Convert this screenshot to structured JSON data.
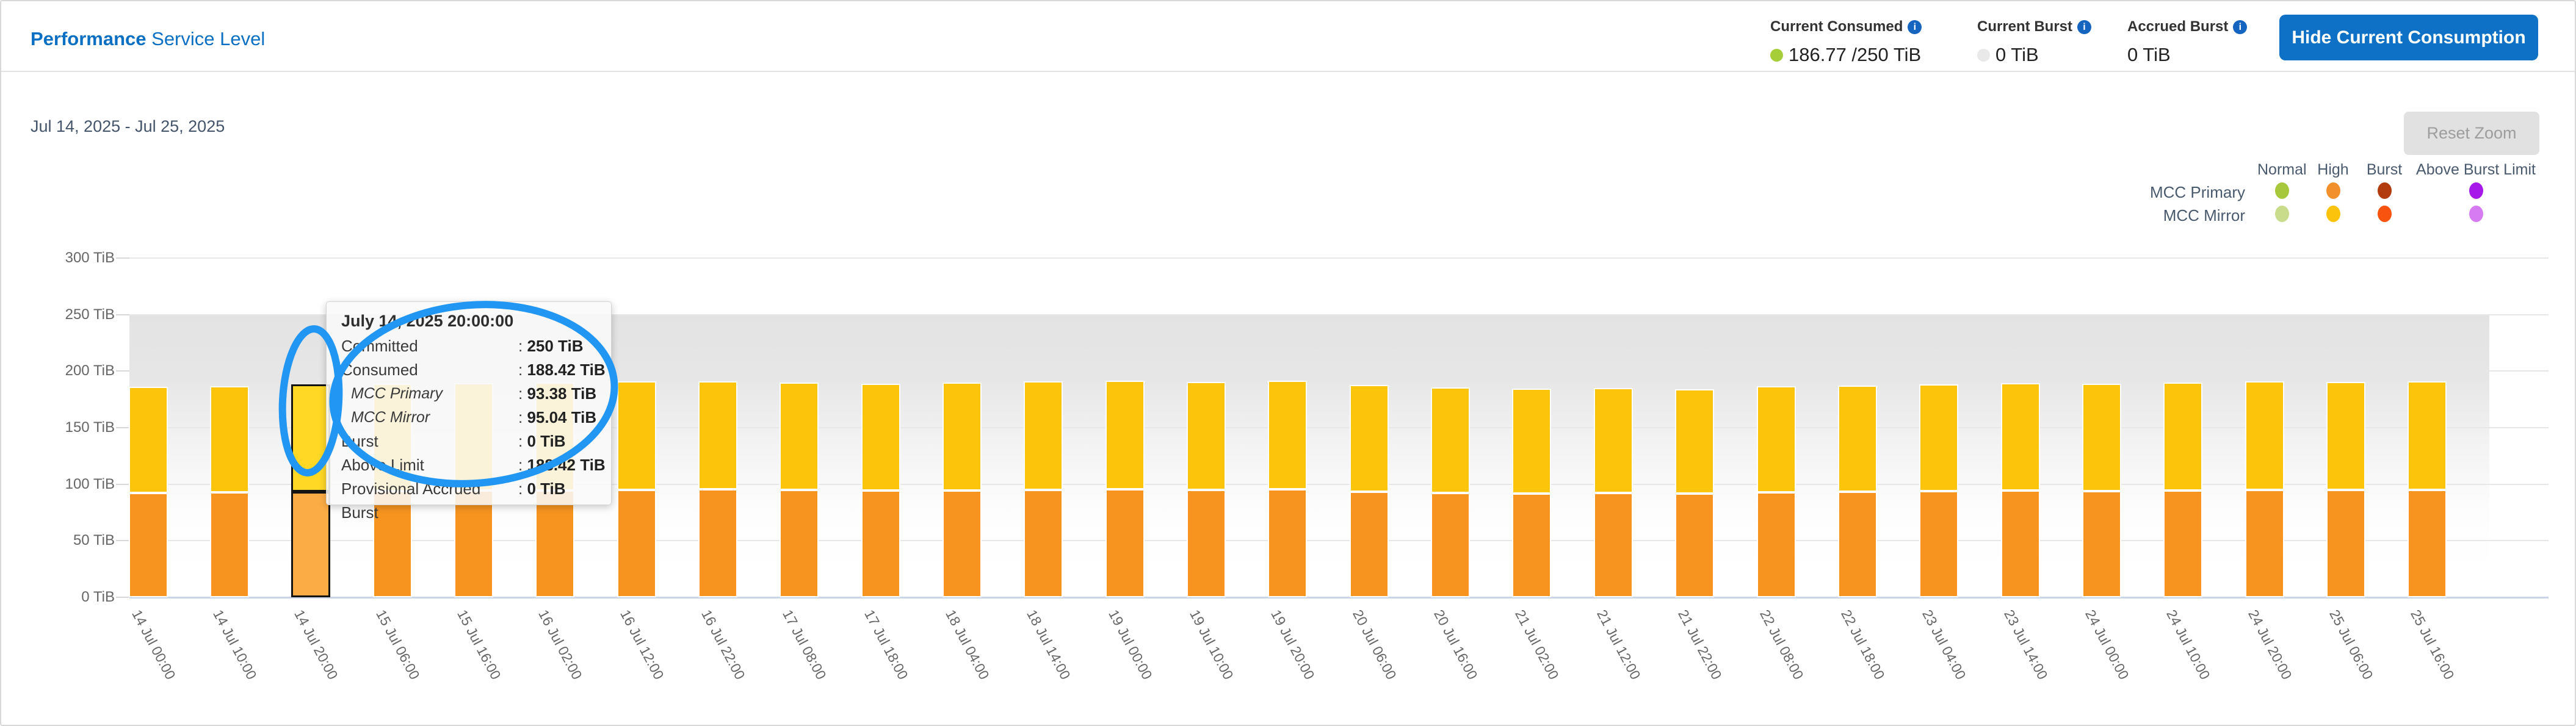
{
  "header": {
    "title_bold": "Performance",
    "title_rest": " Service Level",
    "stats": [
      {
        "label": "Current Consumed",
        "value": "186.77 /250 TiB",
        "dot_color": "#a6ce39"
      },
      {
        "label": "Current Burst",
        "value": "0 TiB",
        "dot_color": "#e9e9e9"
      },
      {
        "label": "Accrued Burst",
        "value": "0 TiB",
        "dot_color": ""
      }
    ],
    "info_icon": "i",
    "button_label": "Hide Current Consumption",
    "button_color": "#0e71c5",
    "title_color": "#0b6fc4"
  },
  "toolbar": {
    "date_range": "Jul 14, 2025 - Jul 25, 2025",
    "reset_zoom_label": "Reset Zoom"
  },
  "legend": {
    "columns": [
      "Normal",
      "High",
      "Burst",
      "Above Burst Limit"
    ],
    "rows": [
      {
        "label": "MCC Primary",
        "colors": [
          "#a8c83c",
          "#f2912c",
          "#b33c0e",
          "#a619e8"
        ]
      },
      {
        "label": "MCC Mirror",
        "colors": [
          "#c8dc8b",
          "#fcc30c",
          "#f85410",
          "#d77bf2"
        ]
      }
    ]
  },
  "tooltip": {
    "title": "July 14, 2025 20:00:00",
    "separator": ": ",
    "rows": [
      {
        "label": "Committed",
        "value": "250 TiB",
        "italic": false
      },
      {
        "label": "Consumed",
        "value": "188.42 TiB",
        "italic": false
      },
      {
        "label": "MCC Primary",
        "value": "93.38 TiB",
        "italic": true
      },
      {
        "label": "MCC Mirror",
        "value": "95.04 TiB",
        "italic": true
      },
      {
        "label": "Burst",
        "value": "0 TiB",
        "italic": false
      },
      {
        "label": "Above Limit",
        "value": "188.42 TiB",
        "italic": false
      },
      {
        "label": "Provisional Accrued Burst",
        "value": "0 TiB",
        "italic": false
      }
    ]
  },
  "chart_data": {
    "type": "bar",
    "stacked": true,
    "title": "",
    "xlabel": "",
    "ylabel": "TiB",
    "ylim": [
      0,
      300
    ],
    "grid": true,
    "legend_position": "top-right",
    "committed_band_top": 250,
    "yticks": [
      {
        "value": 300,
        "label": "300 TiB"
      },
      {
        "value": 250,
        "label": "250 TiB"
      },
      {
        "value": 200,
        "label": "200 TiB"
      },
      {
        "value": 150,
        "label": "150 TiB"
      },
      {
        "value": 100,
        "label": "100 TiB"
      },
      {
        "value": 50,
        "label": "50 TiB"
      },
      {
        "value": 0,
        "label": "0 TiB"
      }
    ],
    "categories": [
      "14 Jul 00:00",
      "14 Jul 10:00",
      "14 Jul 20:00",
      "15 Jul 06:00",
      "15 Jul 16:00",
      "16 Jul 02:00",
      "16 Jul 12:00",
      "16 Jul 22:00",
      "17 Jul 08:00",
      "17 Jul 18:00",
      "18 Jul 04:00",
      "18 Jul 14:00",
      "19 Jul 00:00",
      "19 Jul 10:00",
      "19 Jul 20:00",
      "20 Jul 06:00",
      "20 Jul 16:00",
      "21 Jul 02:00",
      "21 Jul 12:00",
      "21 Jul 22:00",
      "22 Jul 08:00",
      "22 Jul 18:00",
      "23 Jul 04:00",
      "23 Jul 14:00",
      "24 Jul 00:00",
      "24 Jul 10:00",
      "24 Jul 20:00",
      "25 Jul 06:00",
      "25 Jul 16:00"
    ],
    "series": [
      {
        "name": "MCC Primary",
        "state": "High",
        "color": "#f6941f",
        "hover_color": "#fbac45",
        "values": [
          92.5,
          92.8,
          93.38,
          93.9,
          94.2,
          94.6,
          94.9,
          95.3,
          94.8,
          94.2,
          94.5,
          95.0,
          95.4,
          95.0,
          95.6,
          93.5,
          92.3,
          91.8,
          92.1,
          91.5,
          92.9,
          93.3,
          93.8,
          94.3,
          94.0,
          94.6,
          95.1,
          94.8,
          95.2
        ]
      },
      {
        "name": "MCC Mirror",
        "state": "High",
        "color": "#fcc50b",
        "hover_color": "#ffd825",
        "values": [
          93.6,
          93.8,
          95.04,
          95.1,
          95.0,
          95.6,
          95.9,
          95.9,
          95.4,
          94.9,
          95.3,
          95.8,
          96.1,
          95.6,
          96.2,
          94.3,
          93.2,
          92.7,
          93.0,
          92.4,
          93.7,
          94.2,
          94.6,
          95.0,
          94.8,
          95.4,
          95.7,
          95.5,
          95.9
        ]
      }
    ],
    "highlighted_index": 2,
    "annotation_color": "#2196f3"
  }
}
